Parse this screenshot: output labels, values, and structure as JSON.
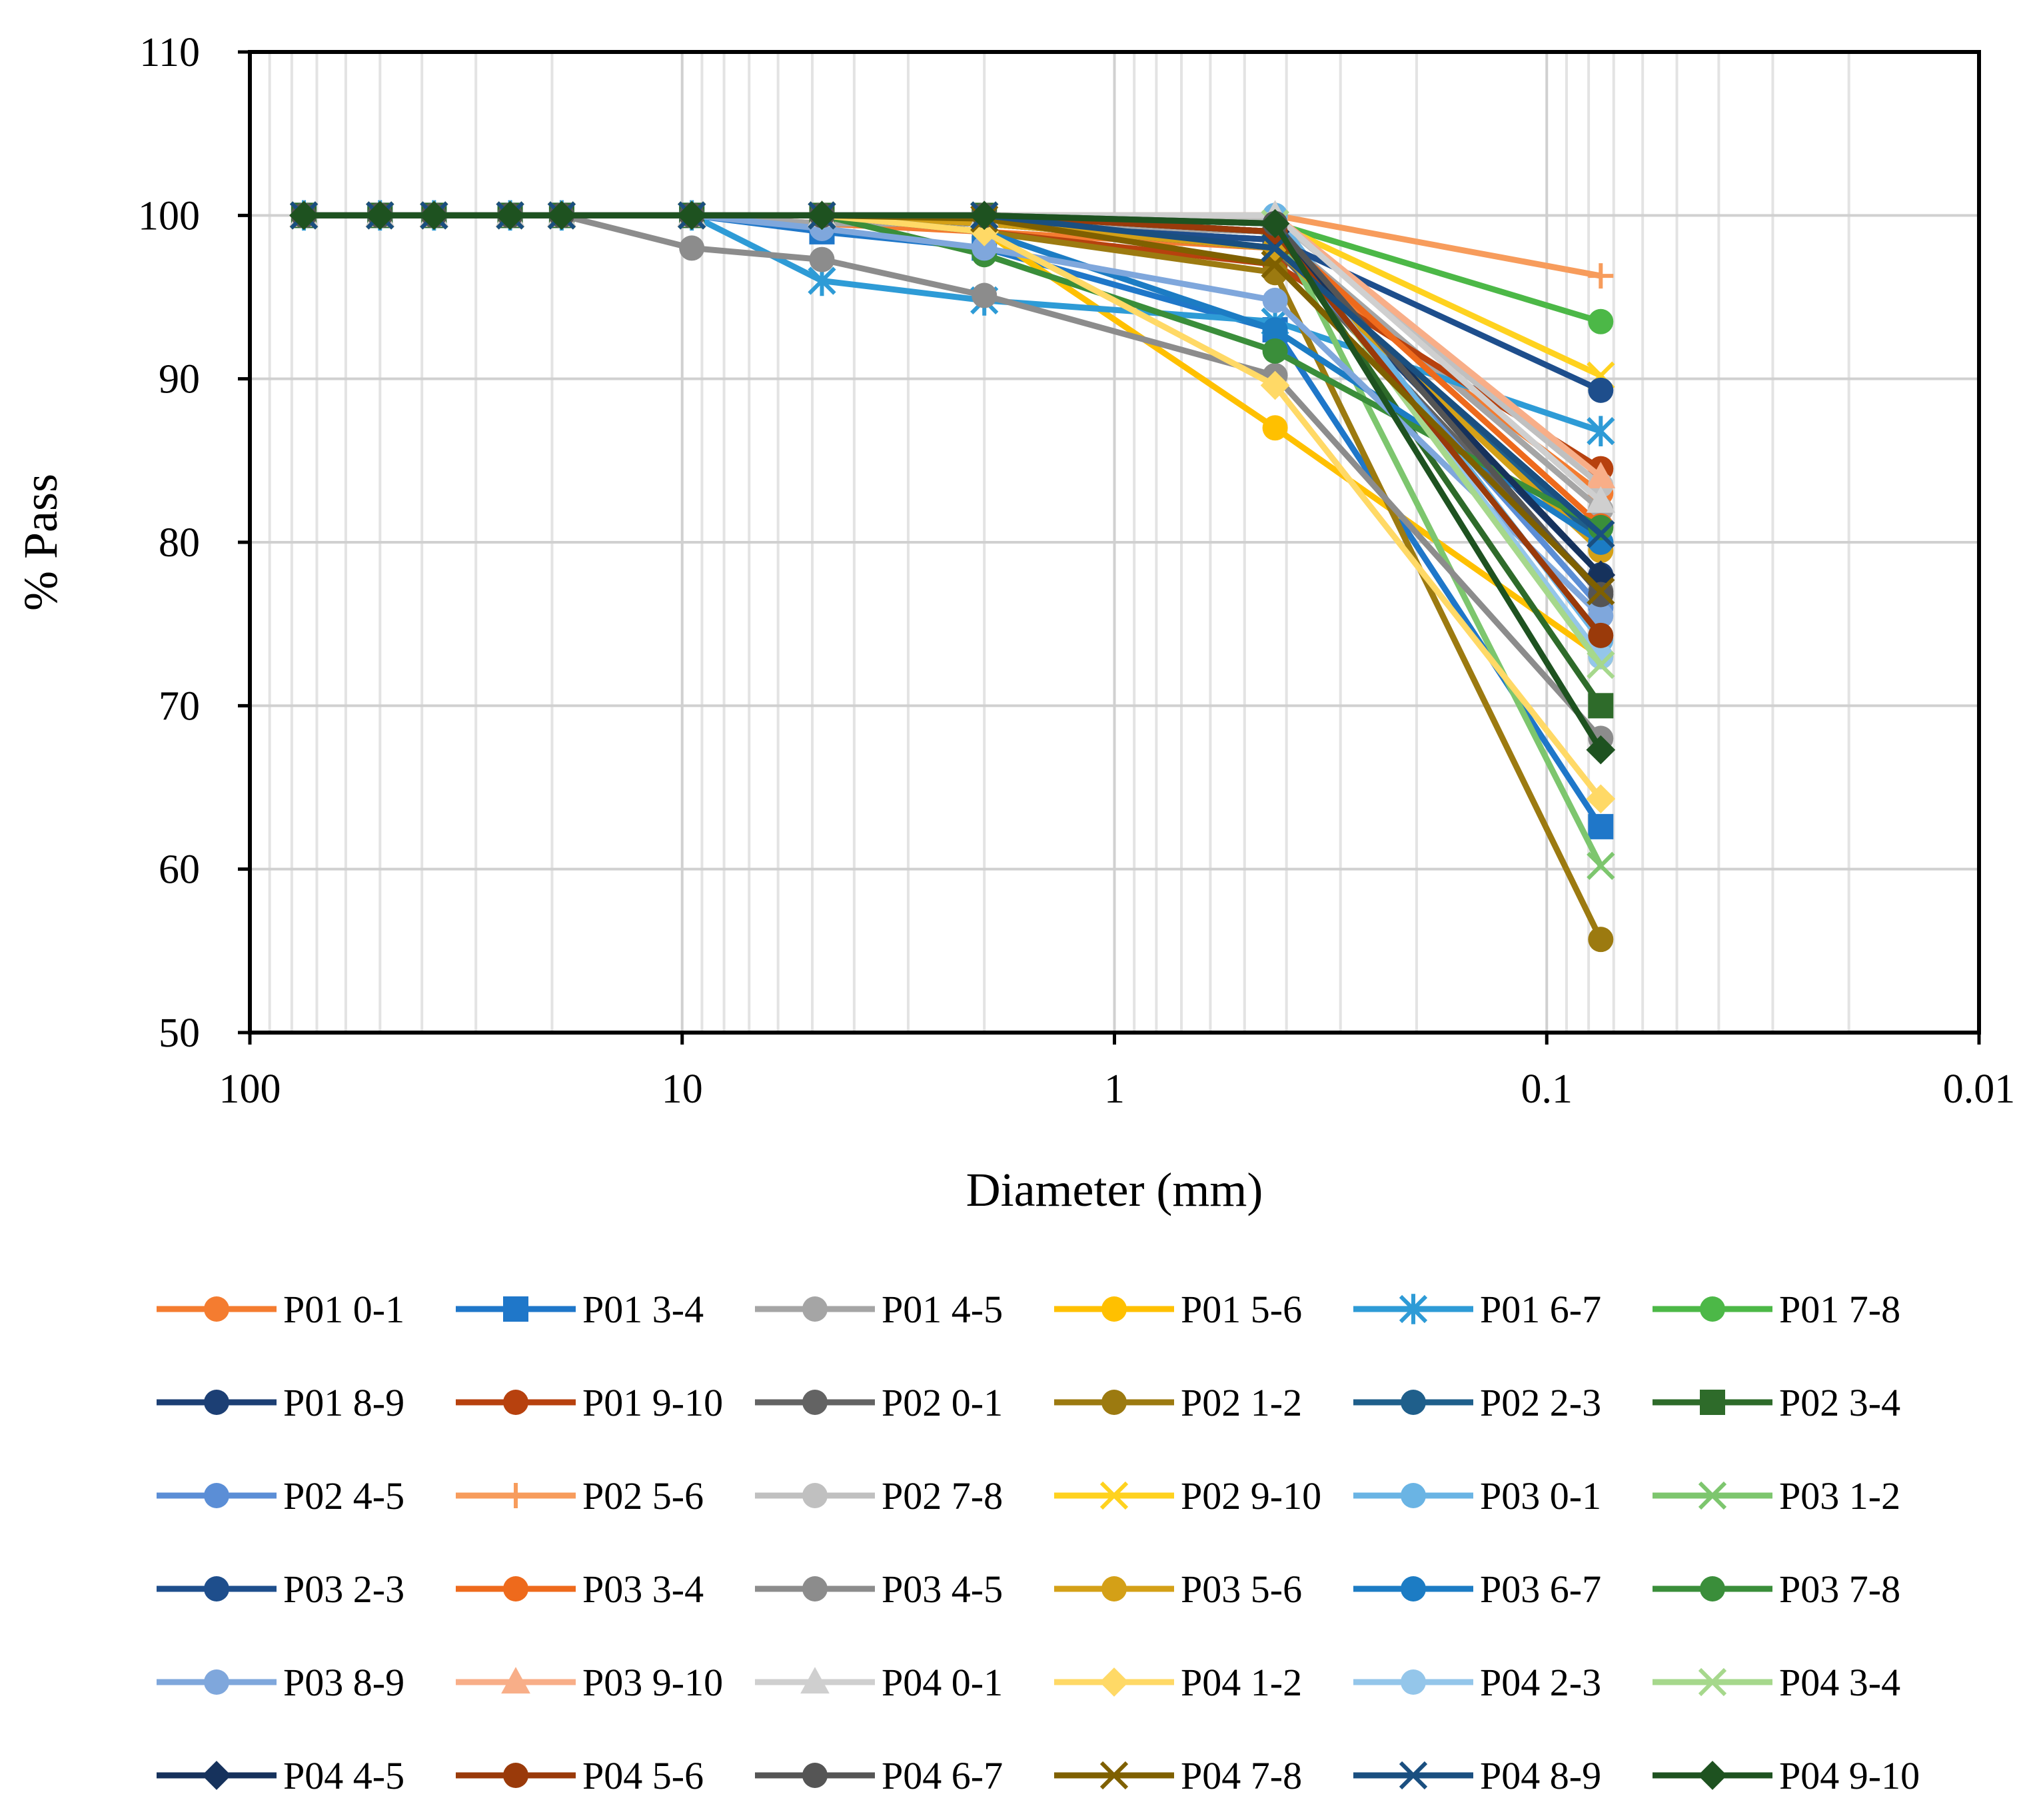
{
  "chart_data": {
    "type": "line",
    "title": "",
    "xlabel": "Diameter (mm)",
    "ylabel": "% Pass",
    "x_scale": "log",
    "x_reversed": true,
    "xlim": [
      100,
      0.01
    ],
    "ylim": [
      50,
      110
    ],
    "grid": true,
    "legend_position": "bottom",
    "x_tick_labels": [
      "100",
      "10",
      "1",
      "0.1",
      "0.01"
    ],
    "x_ticks": [
      100,
      10,
      1,
      0.1,
      0.01
    ],
    "y_ticks": [
      50,
      60,
      70,
      80,
      90,
      100,
      110
    ],
    "y_tick_labels": [
      "50",
      "60",
      "70",
      "80",
      "90",
      "100",
      "110"
    ],
    "x": [
      75,
      50,
      37.5,
      25,
      19,
      9.5,
      4.75,
      2,
      0.425,
      0.075
    ],
    "series": [
      {
        "name": "P01 0-1",
        "color": "#F47C30",
        "marker": "circle",
        "values": [
          100,
          100,
          100,
          100,
          100,
          100,
          99.5,
          99,
          98,
          83
        ]
      },
      {
        "name": "P01 3-4",
        "color": "#1F77C9",
        "marker": "square",
        "values": [
          100,
          100,
          100,
          100,
          100,
          100,
          99,
          98,
          93,
          62.6
        ]
      },
      {
        "name": "P01 4-5",
        "color": "#A5A5A5",
        "marker": "circle",
        "values": [
          100,
          100,
          100,
          100,
          100,
          100,
          99.5,
          99.5,
          99,
          82
        ]
      },
      {
        "name": "P01 5-6",
        "color": "#FFC000",
        "marker": "circle",
        "values": [
          100,
          100,
          100,
          100,
          100,
          100,
          100,
          99,
          87,
          73
        ]
      },
      {
        "name": "P01 6-7",
        "color": "#2E9BD6",
        "marker": "asterisk",
        "values": [
          100,
          100,
          100,
          100,
          100,
          100,
          96,
          94.8,
          93.5,
          86.8
        ]
      },
      {
        "name": "P01 7-8",
        "color": "#4CB847",
        "marker": "circle",
        "values": [
          100,
          100,
          100,
          100,
          100,
          100,
          100,
          100,
          99.5,
          93.5
        ]
      },
      {
        "name": "P01 8-9",
        "color": "#1C3F74",
        "marker": "circle",
        "values": [
          100,
          100,
          100,
          100,
          100,
          100,
          100,
          99.5,
          98.5,
          78
        ]
      },
      {
        "name": "P01 9-10",
        "color": "#B7410E",
        "marker": "circle",
        "values": [
          100,
          100,
          100,
          100,
          100,
          100,
          100,
          99,
          97,
          84.5
        ]
      },
      {
        "name": "P02 0-1",
        "color": "#636363",
        "marker": "circle",
        "values": [
          100,
          100,
          100,
          100,
          100,
          100,
          100,
          99.5,
          98,
          77
        ]
      },
      {
        "name": "P02 1-2",
        "color": "#9C7A10",
        "marker": "circle",
        "values": [
          100,
          100,
          100,
          100,
          100,
          100,
          100,
          99,
          96.5,
          55.7
        ]
      },
      {
        "name": "P02 2-3",
        "color": "#1F5F8B",
        "marker": "circle",
        "values": [
          100,
          100,
          100,
          100,
          100,
          100,
          100,
          99.5,
          98,
          80
        ]
      },
      {
        "name": "P02 3-4",
        "color": "#2E6B2A",
        "marker": "square",
        "values": [
          100,
          100,
          100,
          100,
          100,
          100,
          100,
          100,
          99,
          70
        ]
      },
      {
        "name": "P02 4-5",
        "color": "#5B8ED6",
        "marker": "circle",
        "values": [
          100,
          100,
          100,
          100,
          100,
          100,
          100,
          99.5,
          98.5,
          76
        ]
      },
      {
        "name": "P02 5-6",
        "color": "#F79C5C",
        "marker": "plus",
        "values": [
          100,
          100,
          100,
          100,
          100,
          100,
          100,
          100,
          100,
          96.3
        ]
      },
      {
        "name": "P02 7-8",
        "color": "#C0C0C0",
        "marker": "circle",
        "values": [
          100,
          100,
          100,
          100,
          100,
          100,
          100,
          100,
          99.8,
          83.5
        ]
      },
      {
        "name": "P02 9-10",
        "color": "#FFD21F",
        "marker": "x",
        "values": [
          100,
          100,
          100,
          100,
          100,
          100,
          100,
          100,
          99.5,
          90.2
        ]
      },
      {
        "name": "P03 0-1",
        "color": "#6AB4E4",
        "marker": "circle",
        "values": [
          100,
          100,
          100,
          100,
          100,
          100,
          100,
          100,
          100,
          74
        ]
      },
      {
        "name": "P03 1-2",
        "color": "#7DC66E",
        "marker": "x",
        "values": [
          100,
          100,
          100,
          100,
          100,
          100,
          100,
          100,
          99.5,
          60.2
        ]
      },
      {
        "name": "P03 2-3",
        "color": "#1E4E8C",
        "marker": "circle",
        "values": [
          100,
          100,
          100,
          100,
          100,
          100,
          100,
          99.5,
          98.5,
          89.3
        ]
      },
      {
        "name": "P03 3-4",
        "color": "#EE6A1C",
        "marker": "circle",
        "values": [
          100,
          100,
          100,
          100,
          100,
          100,
          100,
          100,
          99,
          81
        ]
      },
      {
        "name": "P03 4-5",
        "color": "#8C8C8C",
        "marker": "circle",
        "values": [
          100,
          100,
          100,
          100,
          100,
          98,
          97.3,
          95.1,
          90.2,
          68
        ]
      },
      {
        "name": "P03 5-6",
        "color": "#D4A017",
        "marker": "circle",
        "values": [
          100,
          100,
          100,
          100,
          100,
          100,
          100,
          99.5,
          98,
          79.5
        ]
      },
      {
        "name": "P03 6-7",
        "color": "#1C7CC4",
        "marker": "circle",
        "values": [
          100,
          100,
          100,
          100,
          100,
          100,
          100,
          99,
          93,
          80
        ]
      },
      {
        "name": "P03 7-8",
        "color": "#3A8E3A",
        "marker": "circle",
        "values": [
          100,
          100,
          100,
          100,
          100,
          100,
          100,
          97.6,
          91.7,
          80.9
        ]
      },
      {
        "name": "P03 8-9",
        "color": "#7FA7DC",
        "marker": "circle",
        "values": [
          100,
          100,
          100,
          100,
          100,
          100,
          99.2,
          98,
          94.8,
          75.5
        ]
      },
      {
        "name": "P03 9-10",
        "color": "#F8AE88",
        "marker": "triangle",
        "values": [
          100,
          100,
          100,
          100,
          100,
          100,
          100,
          100,
          100,
          84
        ]
      },
      {
        "name": "P04 0-1",
        "color": "#CFCFCF",
        "marker": "triangle",
        "values": [
          100,
          100,
          100,
          100,
          100,
          100,
          100,
          100,
          100,
          82.5
        ]
      },
      {
        "name": "P04 1-2",
        "color": "#FFD966",
        "marker": "diamond",
        "values": [
          100,
          100,
          100,
          100,
          100,
          100,
          100,
          99,
          89.6,
          64.3
        ]
      },
      {
        "name": "P04 2-3",
        "color": "#94C6EA",
        "marker": "circle",
        "values": [
          100,
          100,
          100,
          100,
          100,
          100,
          100,
          100,
          99.5,
          73
        ]
      },
      {
        "name": "P04 3-4",
        "color": "#A6D88C",
        "marker": "x",
        "values": [
          100,
          100,
          100,
          100,
          100,
          100,
          100,
          100,
          99.5,
          72.5
        ]
      },
      {
        "name": "P04 4-5",
        "color": "#16325C",
        "marker": "diamond",
        "values": [
          100,
          100,
          100,
          100,
          100,
          100,
          100,
          100,
          99,
          78
        ]
      },
      {
        "name": "P04 5-6",
        "color": "#9A3A0A",
        "marker": "circle",
        "values": [
          100,
          100,
          100,
          100,
          100,
          100,
          100,
          100,
          99,
          74.3
        ]
      },
      {
        "name": "P04 6-7",
        "color": "#555555",
        "marker": "circle",
        "values": [
          100,
          100,
          100,
          100,
          100,
          100,
          100,
          100,
          99.5,
          76.8
        ]
      },
      {
        "name": "P04 7-8",
        "color": "#7F6000",
        "marker": "x",
        "values": [
          100,
          100,
          100,
          100,
          100,
          100,
          100,
          99.8,
          97,
          77
        ]
      },
      {
        "name": "P04 8-9",
        "color": "#1A4F80",
        "marker": "x",
        "values": [
          100,
          100,
          100,
          100,
          100,
          100,
          100,
          100,
          98,
          80.5
        ]
      },
      {
        "name": "P04 9-10",
        "color": "#1E5220",
        "marker": "diamond",
        "values": [
          100,
          100,
          100,
          100,
          100,
          100,
          100,
          100,
          99.5,
          67.3
        ]
      }
    ]
  }
}
